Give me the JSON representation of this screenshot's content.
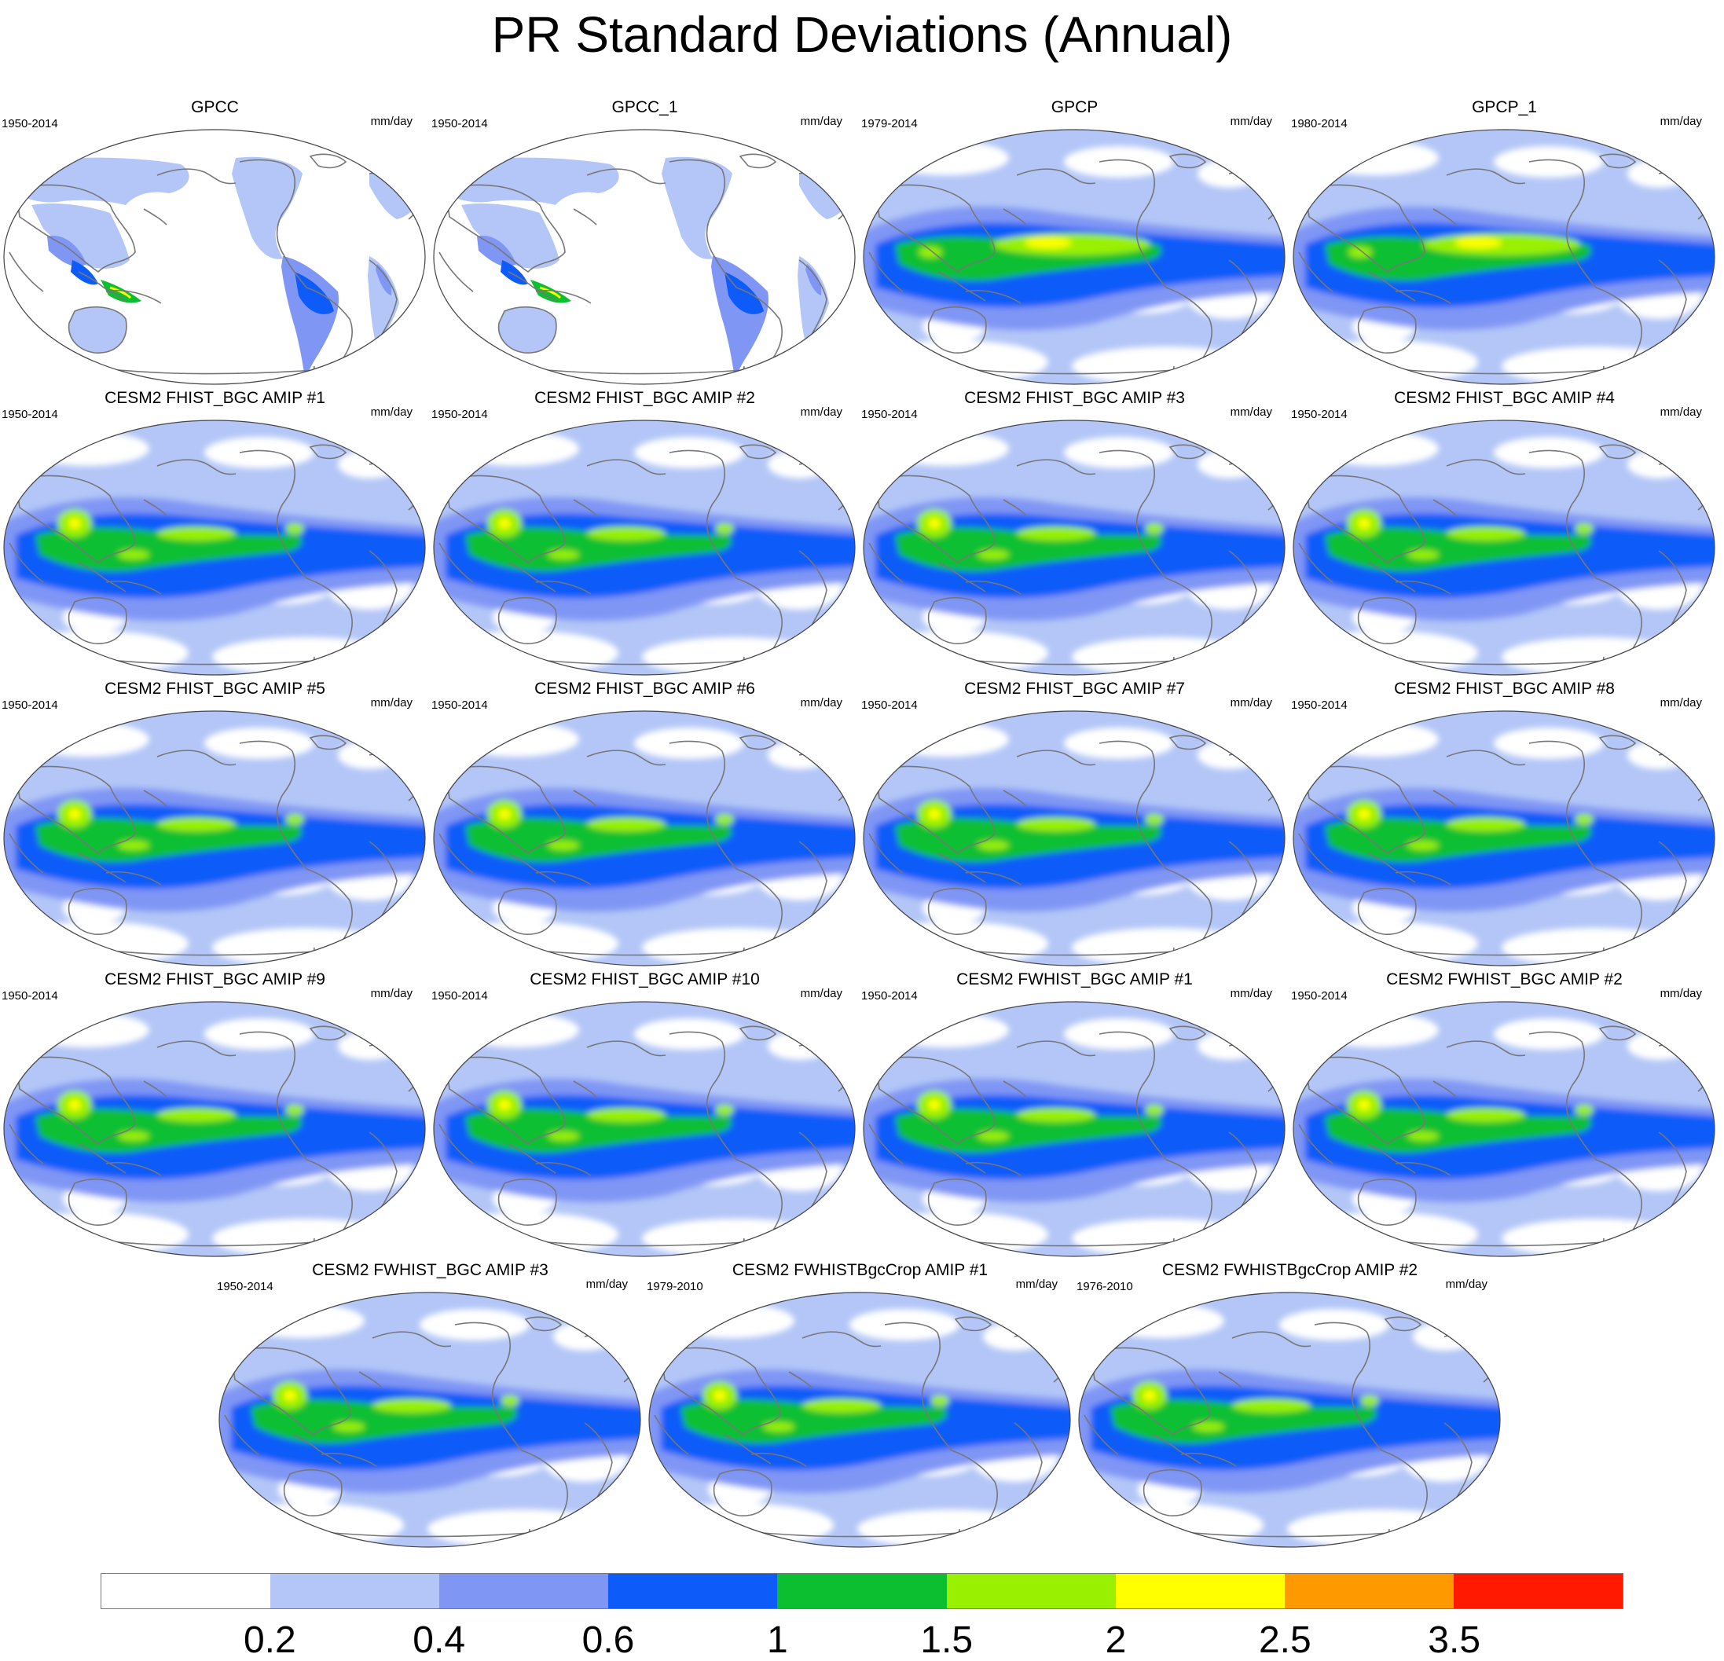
{
  "title": "PR Standard Deviations (Annual)",
  "units": "mm/day",
  "panels": [
    {
      "title": "GPCC",
      "period": "1950-2014",
      "style": "land"
    },
    {
      "title": "GPCC_1",
      "period": "1950-2014",
      "style": "land"
    },
    {
      "title": "GPCP",
      "period": "1979-2014",
      "style": "obs"
    },
    {
      "title": "GPCP_1",
      "period": "1980-2014",
      "style": "obs"
    },
    {
      "title": "CESM2 FHIST_BGC AMIP #1",
      "period": "1950-2014",
      "style": "model"
    },
    {
      "title": "CESM2 FHIST_BGC AMIP #2",
      "period": "1950-2014",
      "style": "model"
    },
    {
      "title": "CESM2 FHIST_BGC AMIP #3",
      "period": "1950-2014",
      "style": "model"
    },
    {
      "title": "CESM2 FHIST_BGC AMIP #4",
      "period": "1950-2014",
      "style": "model"
    },
    {
      "title": "CESM2 FHIST_BGC AMIP #5",
      "period": "1950-2014",
      "style": "model"
    },
    {
      "title": "CESM2 FHIST_BGC AMIP #6",
      "period": "1950-2014",
      "style": "model"
    },
    {
      "title": "CESM2 FHIST_BGC AMIP #7",
      "period": "1950-2014",
      "style": "model"
    },
    {
      "title": "CESM2 FHIST_BGC AMIP #8",
      "period": "1950-2014",
      "style": "model"
    },
    {
      "title": "CESM2 FHIST_BGC AMIP #9",
      "period": "1950-2014",
      "style": "model"
    },
    {
      "title": "CESM2 FHIST_BGC AMIP #10",
      "period": "1950-2014",
      "style": "model"
    },
    {
      "title": "CESM2 FWHIST_BGC AMIP #1",
      "period": "1950-2014",
      "style": "model"
    },
    {
      "title": "CESM2 FWHIST_BGC AMIP #2",
      "period": "1950-2014",
      "style": "model"
    },
    {
      "title": "CESM2 FWHIST_BGC AMIP #3",
      "period": "1950-2014",
      "style": "model"
    },
    {
      "title": "CESM2 FWHISTBgcCrop AMIP #1",
      "period": "1979-2010",
      "style": "model"
    },
    {
      "title": "CESM2 FWHISTBgcCrop AMIP #2",
      "period": "1976-2010",
      "style": "model"
    }
  ],
  "colorbar": {
    "labels": [
      "0.2",
      "0.4",
      "0.6",
      "1",
      "1.5",
      "2",
      "2.5",
      "3.5"
    ],
    "colors": [
      "#ffffff",
      "#b3c6f7",
      "#8096f5",
      "#0d5bf9",
      "#0cbf30",
      "#99f000",
      "#ffff00",
      "#ff9900",
      "#ff1900"
    ]
  }
}
